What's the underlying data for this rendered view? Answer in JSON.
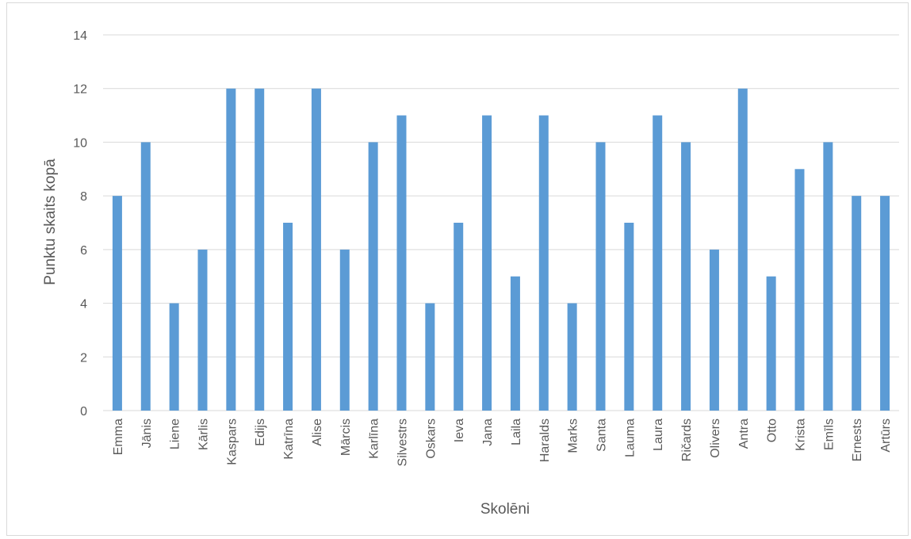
{
  "chart_data": {
    "type": "bar",
    "title": "",
    "xlabel": "Skolēni",
    "ylabel": "Punktu skaits kopā",
    "ylim": [
      0,
      14
    ],
    "yticks": [
      0,
      2,
      4,
      6,
      8,
      10,
      12,
      14
    ],
    "grid": true,
    "legend": "none",
    "bar_color": "#5b9bd5",
    "grid_color": "#d9d9d9",
    "categories": [
      "Emma",
      "Jānis",
      "Liene",
      "Kārlis",
      "Kaspars",
      "Edijs",
      "Katrīna",
      "Alise",
      "Mārcis",
      "Karlīna",
      "Silvestrs",
      "Oskars",
      "Ieva",
      "Jana",
      "Laila",
      "Haralds",
      "Marks",
      "Santa",
      "Lauma",
      "Laura",
      "Ričards",
      "Olivers",
      "Antra",
      "Otto",
      "Krista",
      "Emīls",
      "Ernests",
      "Artūrs"
    ],
    "values": [
      8,
      10,
      4,
      6,
      12,
      12,
      7,
      12,
      6,
      10,
      11,
      4,
      7,
      11,
      5,
      11,
      4,
      10,
      7,
      11,
      10,
      6,
      12,
      5,
      9,
      10,
      8,
      8
    ]
  }
}
